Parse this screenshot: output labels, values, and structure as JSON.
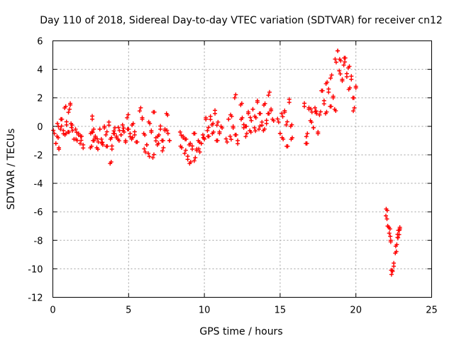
{
  "chart_data": {
    "type": "scatter",
    "title": "Day 110 of 2018, Sidereal Day-to-day VTEC variation (SDTVAR) for receiver cn12",
    "xlabel": "GPS time / hours",
    "ylabel": "SDTVAR / TECUs",
    "xlim": [
      0,
      25
    ],
    "ylim": [
      -12,
      6
    ],
    "xticks": [
      "0",
      "5",
      "10",
      "15",
      "20",
      "25"
    ],
    "yticks": [
      "-12",
      "-10",
      "-8",
      "-6",
      "-4",
      "-2",
      "0",
      "2",
      "4",
      "6"
    ],
    "grid": true,
    "marker": "+",
    "marker_color": "#ff0000",
    "series": [
      {
        "name": "SDTVAR",
        "points": [
          [
            0.1,
            -0.5
          ],
          [
            0.2,
            -1.2
          ],
          [
            0.3,
            0.2
          ],
          [
            0.35,
            -0.8
          ],
          [
            0.4,
            -1.5
          ],
          [
            0.5,
            -0.2
          ],
          [
            0.6,
            0.5
          ],
          [
            0.7,
            -0.3
          ],
          [
            0.8,
            -0.6
          ],
          [
            0.85,
            1.4
          ],
          [
            0.9,
            0.1
          ],
          [
            1.0,
            -0.4
          ],
          [
            1.1,
            1.2
          ],
          [
            1.15,
            1.5
          ],
          [
            1.2,
            0.2
          ],
          [
            1.3,
            -0.3
          ],
          [
            1.4,
            -0.9
          ],
          [
            1.5,
            -0.2
          ],
          [
            1.6,
            -1.0
          ],
          [
            1.7,
            -0.5
          ],
          [
            1.8,
            -1.2
          ],
          [
            1.9,
            -0.7
          ],
          [
            2.0,
            -1.3
          ],
          [
            2.5,
            -0.5
          ],
          [
            2.55,
            -1.4
          ],
          [
            2.6,
            0.5
          ],
          [
            2.65,
            -1.0
          ],
          [
            2.7,
            -0.2
          ],
          [
            2.8,
            -0.8
          ],
          [
            2.9,
            -1.5
          ],
          [
            3.0,
            -1.1
          ],
          [
            3.1,
            -0.2
          ],
          [
            3.2,
            -0.9
          ],
          [
            3.3,
            -1.3
          ],
          [
            3.4,
            0.0
          ],
          [
            3.5,
            -0.6
          ],
          [
            3.6,
            -1.4
          ],
          [
            3.7,
            0.3
          ],
          [
            3.8,
            -0.9
          ],
          [
            3.85,
            -2.5
          ],
          [
            3.9,
            -1.6
          ],
          [
            4.0,
            -0.5
          ],
          [
            4.1,
            -0.1
          ],
          [
            4.2,
            -0.8
          ],
          [
            4.3,
            -0.9
          ],
          [
            4.4,
            -0.3
          ],
          [
            4.5,
            -0.6
          ],
          [
            4.6,
            0.1
          ],
          [
            4.7,
            -0.4
          ],
          [
            4.8,
            -1.0
          ],
          [
            4.9,
            0.6
          ],
          [
            5.0,
            -0.2
          ],
          [
            5.1,
            -0.5
          ],
          [
            5.2,
            -0.9
          ],
          [
            5.3,
            0.2
          ],
          [
            5.4,
            -0.6
          ],
          [
            5.5,
            -1.1
          ],
          [
            5.8,
            1.3
          ],
          [
            5.9,
            0.5
          ],
          [
            6.0,
            -0.5
          ],
          [
            6.1,
            -1.8
          ],
          [
            6.2,
            -1.3
          ],
          [
            6.3,
            -1.9
          ],
          [
            6.4,
            0.2
          ],
          [
            6.5,
            -0.3
          ],
          [
            6.6,
            -2.2
          ],
          [
            6.7,
            1.0
          ],
          [
            6.8,
            -0.8
          ],
          [
            6.9,
            -1.3
          ],
          [
            7.0,
            -0.6
          ],
          [
            7.1,
            -0.2
          ],
          [
            7.2,
            -1.0
          ],
          [
            7.3,
            -1.5
          ],
          [
            7.4,
            -0.3
          ],
          [
            7.5,
            0.9
          ],
          [
            7.6,
            -0.5
          ],
          [
            7.7,
            -1.0
          ],
          [
            8.4,
            -0.4
          ],
          [
            8.5,
            -1.5
          ],
          [
            8.6,
            -0.7
          ],
          [
            8.7,
            -1.9
          ],
          [
            8.8,
            -0.9
          ],
          [
            8.9,
            -2.1
          ],
          [
            9.0,
            -1.3
          ],
          [
            9.1,
            -2.5
          ],
          [
            9.2,
            -1.6
          ],
          [
            9.3,
            -0.5
          ],
          [
            9.4,
            -2.2
          ],
          [
            9.5,
            -1.7
          ],
          [
            9.6,
            -1.0
          ],
          [
            9.7,
            -1.8
          ],
          [
            9.8,
            -1.2
          ],
          [
            9.9,
            -0.6
          ],
          [
            10.0,
            -0.9
          ],
          [
            10.1,
            0.6
          ],
          [
            10.2,
            -0.3
          ],
          [
            10.3,
            -0.7
          ],
          [
            10.4,
            0.7
          ],
          [
            10.5,
            0.1
          ],
          [
            10.6,
            -0.4
          ],
          [
            10.7,
            0.9
          ],
          [
            10.8,
            -1.0
          ],
          [
            10.9,
            0.3
          ],
          [
            11.0,
            -0.5
          ],
          [
            11.1,
            0.0
          ],
          [
            11.5,
            -1.1
          ],
          [
            11.6,
            0.5
          ],
          [
            11.7,
            -0.7
          ],
          [
            11.8,
            0.7
          ],
          [
            11.9,
            0.0
          ],
          [
            12.0,
            2.0
          ],
          [
            12.1,
            -0.6
          ],
          [
            12.2,
            -1.0
          ],
          [
            12.4,
            1.5
          ],
          [
            12.5,
            0.6
          ],
          [
            12.6,
            -0.1
          ],
          [
            12.7,
            0.0
          ],
          [
            12.8,
            -0.5
          ],
          [
            12.9,
            0.9
          ],
          [
            13.0,
            -0.3
          ],
          [
            13.1,
            0.4
          ],
          [
            13.2,
            1.2
          ],
          [
            13.3,
            -0.1
          ],
          [
            13.4,
            0.6
          ],
          [
            13.5,
            1.8
          ],
          [
            13.6,
            -0.2
          ],
          [
            13.7,
            0.9
          ],
          [
            13.8,
            0.3
          ],
          [
            13.9,
            -0.3
          ],
          [
            14.0,
            1.6
          ],
          [
            14.1,
            0.2
          ],
          [
            14.2,
            0.9
          ],
          [
            14.3,
            2.4
          ],
          [
            14.4,
            1.1
          ],
          [
            14.5,
            0.5
          ],
          [
            14.9,
            0.3
          ],
          [
            15.0,
            -0.5
          ],
          [
            15.1,
            0.9
          ],
          [
            15.2,
            -0.9
          ],
          [
            15.3,
            1.1
          ],
          [
            15.4,
            0.1
          ],
          [
            15.5,
            -1.4
          ],
          [
            15.6,
            1.9
          ],
          [
            15.7,
            0.0
          ],
          [
            15.8,
            -0.8
          ],
          [
            16.6,
            1.4
          ],
          [
            16.7,
            -1.2
          ],
          [
            16.8,
            -0.5
          ],
          [
            16.9,
            1.2
          ],
          [
            17.0,
            0.4
          ],
          [
            17.1,
            1.0
          ],
          [
            17.2,
            -0.1
          ],
          [
            17.3,
            1.3
          ],
          [
            17.4,
            0.9
          ],
          [
            17.5,
            -0.4
          ],
          [
            17.6,
            0.8
          ],
          [
            17.8,
            2.5
          ],
          [
            17.9,
            1.8
          ],
          [
            18.0,
            0.9
          ],
          [
            18.1,
            3.1
          ],
          [
            18.2,
            2.4
          ],
          [
            18.3,
            1.4
          ],
          [
            18.4,
            3.6
          ],
          [
            18.5,
            2.0
          ],
          [
            18.6,
            1.2
          ],
          [
            18.7,
            4.5
          ],
          [
            18.8,
            5.3
          ],
          [
            18.9,
            3.9
          ],
          [
            19.0,
            4.6
          ],
          [
            19.1,
            3.3
          ],
          [
            19.2,
            4.3
          ],
          [
            19.3,
            4.8
          ],
          [
            19.4,
            3.7
          ],
          [
            19.5,
            4.1
          ],
          [
            19.6,
            2.7
          ],
          [
            19.7,
            3.3
          ],
          [
            19.8,
            2.0
          ],
          [
            19.9,
            1.3
          ],
          [
            20.0,
            2.7
          ],
          [
            22.0,
            -5.8
          ],
          [
            22.05,
            -6.5
          ],
          [
            22.1,
            -7.0
          ],
          [
            22.2,
            -7.5
          ],
          [
            22.25,
            -7.2
          ],
          [
            22.3,
            -8.0
          ],
          [
            22.35,
            -10.4
          ],
          [
            22.4,
            -10.1
          ],
          [
            22.5,
            -9.6
          ],
          [
            22.6,
            -8.9
          ],
          [
            22.7,
            -8.3
          ],
          [
            22.75,
            -7.8
          ],
          [
            22.8,
            -7.3
          ],
          [
            22.85,
            -7.6
          ],
          [
            22.9,
            -7.2
          ]
        ]
      }
    ]
  }
}
